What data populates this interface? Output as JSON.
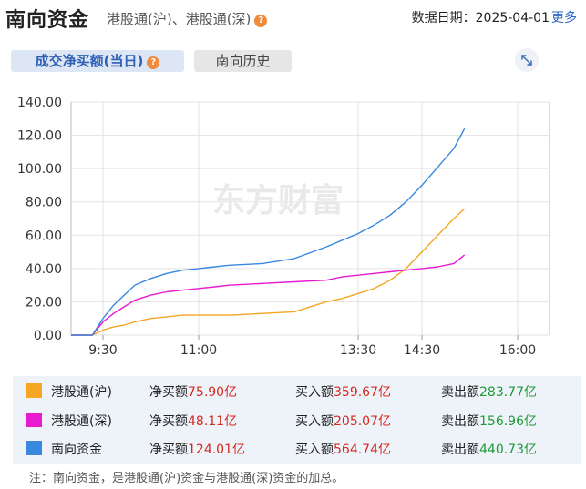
{
  "header": {
    "title": "南向资金",
    "subtitle": "港股通(沪)、港股通(深)",
    "help_icon": "?",
    "date_label": "数据日期：",
    "date_value": "2025-04-01",
    "more_label": "更多"
  },
  "tabs": [
    {
      "label": "成交净买额(当日)",
      "active": true
    },
    {
      "label": "南向历史",
      "active": false
    }
  ],
  "watermark": "东方财富",
  "chart_data": {
    "type": "line",
    "xlabel": "",
    "ylabel": "",
    "x_ticks": [
      "9:30",
      "11:00",
      "13:30",
      "14:30",
      "16:00"
    ],
    "ylim": [
      0,
      140
    ],
    "y_ticks": [
      "0.00",
      "20.00",
      "40.00",
      "60.00",
      "80.00",
      "100.00",
      "120.00",
      "140.00"
    ],
    "grid": true,
    "x": [
      "9:00",
      "9:20",
      "9:30",
      "9:40",
      "9:50",
      "10:00",
      "10:15",
      "10:30",
      "10:45",
      "11:00",
      "11:15",
      "11:30",
      "12:00",
      "12:30",
      "13:00",
      "13:15",
      "13:30",
      "13:45",
      "14:00",
      "14:15",
      "14:30",
      "14:45",
      "15:00",
      "15:10"
    ],
    "series": [
      {
        "name": "港股通(沪)",
        "color": "#f5a623",
        "values": [
          0,
          0,
          3,
          5,
          6,
          8,
          10,
          11,
          12,
          12,
          12,
          12,
          13,
          14,
          20,
          22,
          25,
          28,
          33,
          40,
          50,
          60,
          70,
          75.9
        ]
      },
      {
        "name": "港股通(深)",
        "color": "#e81ad1",
        "values": [
          0,
          0,
          8,
          13,
          17,
          21,
          24,
          26,
          27,
          28,
          29,
          30,
          31,
          32,
          33,
          35,
          36,
          37,
          38,
          39,
          40,
          41,
          43,
          48.11
        ]
      },
      {
        "name": "南向资金",
        "color": "#3a87e0",
        "values": [
          0,
          0,
          10,
          18,
          24,
          30,
          34,
          37,
          39,
          40,
          41,
          42,
          43,
          46,
          53,
          57,
          61,
          66,
          72,
          80,
          90,
          101,
          112,
          124.01
        ]
      }
    ]
  },
  "legend": [
    {
      "name": "港股通(沪)",
      "color": "#f5a623",
      "net_label": "净买额",
      "net_value": "75.90亿",
      "buy_label": "买入额",
      "buy_value": "359.67亿",
      "sell_label": "卖出额",
      "sell_value": "283.77亿"
    },
    {
      "name": "港股通(深)",
      "color": "#e81ad1",
      "net_label": "净买额",
      "net_value": "48.11亿",
      "buy_label": "买入额",
      "buy_value": "205.07亿",
      "sell_label": "卖出额",
      "sell_value": "156.96亿"
    },
    {
      "name": "南向资金",
      "color": "#3a87e0",
      "net_label": "净买额",
      "net_value": "124.01亿",
      "buy_label": "买入额",
      "buy_value": "564.74亿",
      "sell_label": "卖出额",
      "sell_value": "440.73亿"
    }
  ],
  "note": "注：南向资金，是港股通(沪)资金与港股通(深)资金的加总。"
}
